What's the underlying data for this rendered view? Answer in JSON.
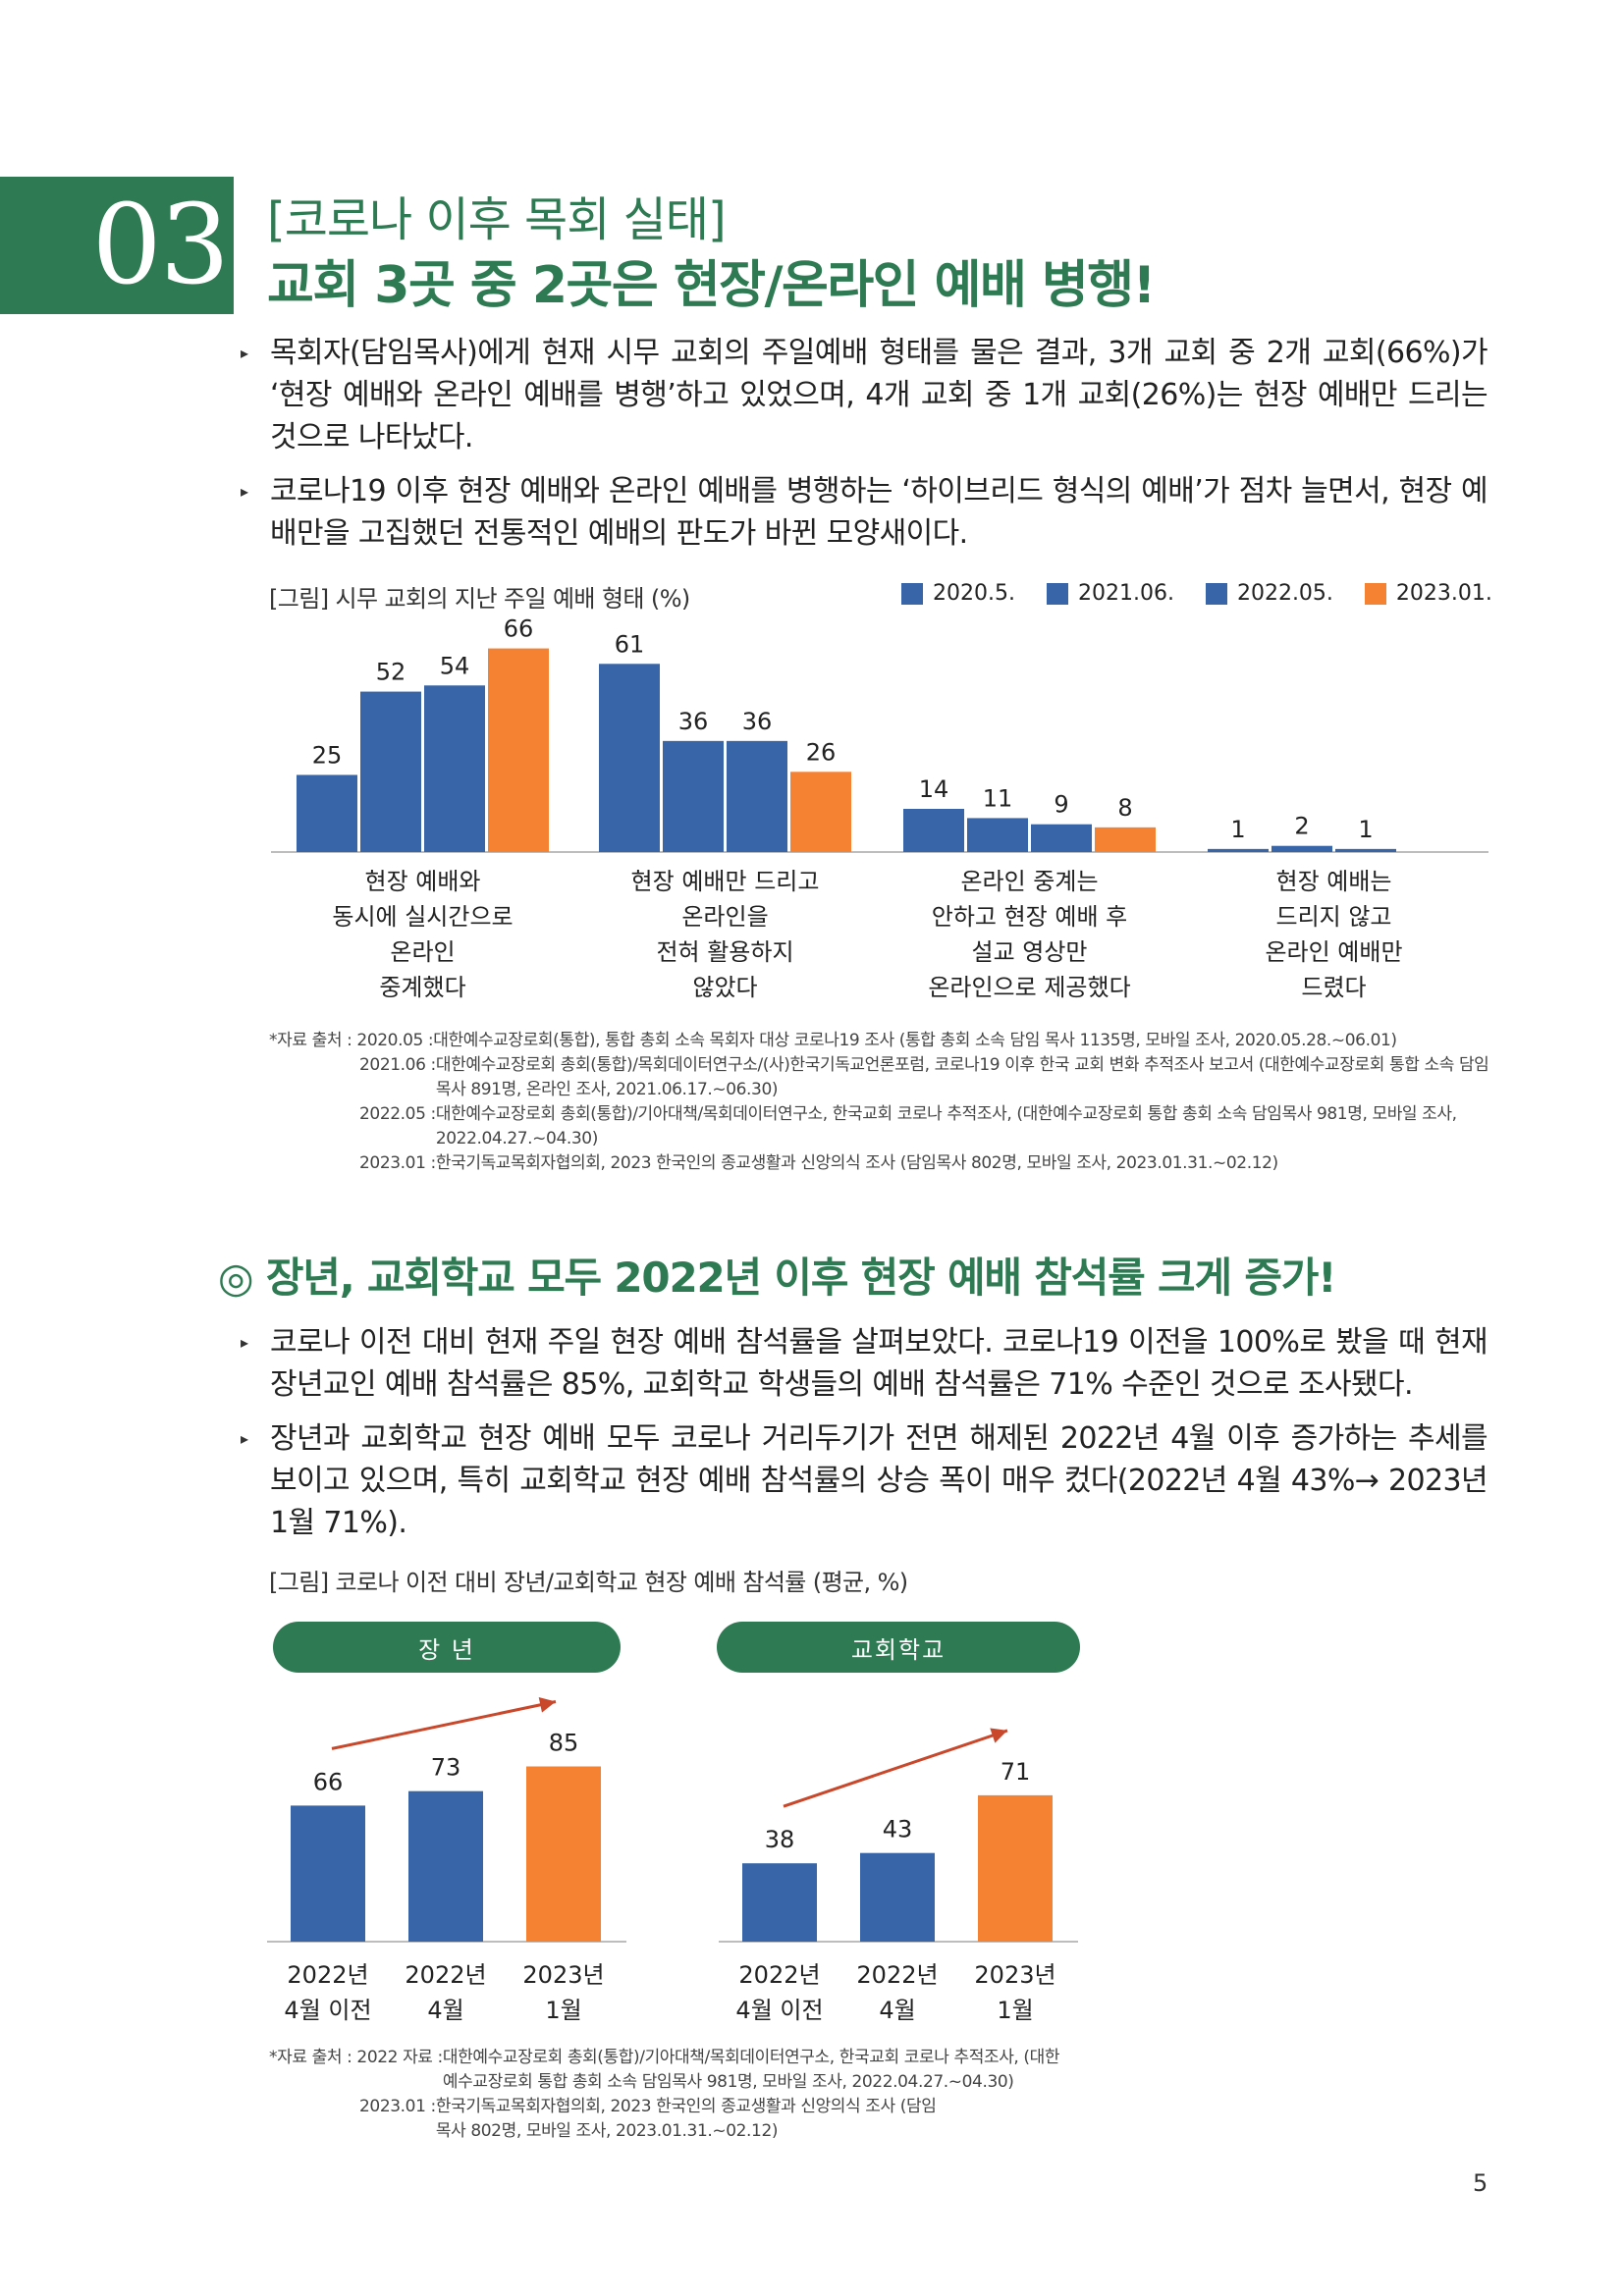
{
  "section": {
    "number": "03",
    "subtitle": "[코로나 이후 목회 실태]",
    "title": "교회 3곳 중 2곳은 현장/온라인 예배 병행!"
  },
  "bullets_top": [
    "목회자(담임목사)에게 현재 시무 교회의 주일예배 형태를 물은 결과, 3개 교회 중 2개 교회(66%)가 ‘현장 예배와 온라인 예배를 병행’하고 있었으며, 4개 교회 중 1개 교회(26%)는 현장 예배만 드리는 것으로 나타났다.",
    "코로나19 이후 현장 예배와 온라인 예배를 병행하는 ‘하이브리드 형식의 예배’가 점차 늘면서, 현장 예배만을 고집했던 전통적인 예배의 판도가 바뀐 모양새이다."
  ],
  "figure1": {
    "caption": "[그림] 시무 교회의 지난 주일 예배 형태 (%)"
  },
  "sources1": [
    {
      "label": "*자료 출처 : 2020.05 : ",
      "text": "대한예수교장로회(통합), 통합 총회 소속 목회자 대상 코로나19 조사 (통합 총회 소속 담임 목사 1135명, 모바일 조사, 2020.05.28.~06.01)"
    },
    {
      "label": "2021.06 : ",
      "text": "대한예수교장로회 총회(통합)/목회데이터연구소/(사)한국기독교언론포럼, 코로나19 이후 한국 교회 변화 추적조사 보고서 (대한예수교장로회 통합 소속 담임목사 891명, 온라인 조사, 2021.06.17.~06.30)"
    },
    {
      "label": "2022.05 : ",
      "text": "대한예수교장로회 총회(통합)/기아대책/목회데이터연구소, 한국교회 코로나 추적조사, (대한예수교장로회 통합 총회 소속 담임목사 981명, 모바일 조사, 2022.04.27.~04.30)"
    },
    {
      "label": "2023.01 : ",
      "text": "한국기독교목회자협의회, 2023 한국인의 종교생활과 신앙의식 조사 (담임목사 802명, 모바일 조사, 2023.01.31.~02.12)"
    }
  ],
  "heading2": "◎ 장년, 교회학교 모두 2022년 이후 현장 예배 참석률 크게 증가!",
  "bullets_bottom": [
    "코로나 이전 대비 현재 주일 현장 예배 참석률을 살펴보았다. 코로나19 이전을 100%로 봤을 때 현재 장년교인 예배 참석률은 85%, 교회학교 학생들의 예배 참석률은 71% 수준인 것으로 조사됐다.",
    "장년과 교회학교 현장 예배 모두 코로나 거리두기가 전면 해제된 2022년 4월 이후 증가하는 추세를 보이고 있으며, 특히 교회학교 현장 예배 참석률의 상승 폭이 매우 컸다(2022년 4월 43%→ 2023년 1월 71%)."
  ],
  "figure2": {
    "caption": "[그림] 코로나 이전 대비 장년/교회학교 현장 예배 참석률 (평균, %)"
  },
  "sources2": [
    {
      "label": "*자료 출처 : 2022 자료 : ",
      "text": "대한예수교장로회 총회(통합)/기아대책/목회데이터연구소, 한국교회 코로나 추적조사, (대한예수교장로회 통합 총회 소속 담임목사 981명, 모바일 조사, 2022.04.27.~04.30)"
    },
    {
      "label": "2023.01 : ",
      "text": "한국기독교목회자협의회, 2023 한국인의 종교생활과 신앙의식 조사 (담임목사 802명, 모바일 조사, 2023.01.31.~02.12)"
    }
  ],
  "page_number": "5",
  "colors": {
    "green": "#2e7a52",
    "blue": "#3765a8",
    "orange": "#f58233"
  },
  "chart_data": [
    {
      "type": "bar",
      "title": "[그림] 시무 교회의 지난 주일 예배 형태 (%)",
      "categories": [
        [
          "현장 예배와",
          "동시에 실시간으로",
          "온라인",
          "중계했다"
        ],
        [
          "현장 예배만 드리고",
          "온라인을",
          "전혀 활용하지",
          "않았다"
        ],
        [
          "온라인 중계는",
          "안하고 현장 예배 후",
          "설교 영상만",
          "온라인으로 제공했다"
        ],
        [
          "현장 예배는",
          "드리지 않고",
          "온라인 예배만",
          "드렸다"
        ]
      ],
      "series": [
        {
          "name": "2020.5.",
          "color": "#3765a8",
          "values": [
            25,
            61,
            14,
            1
          ]
        },
        {
          "name": "2021.06.",
          "color": "#3765a8",
          "values": [
            52,
            36,
            11,
            2
          ]
        },
        {
          "name": "2022.05.",
          "color": "#3765a8",
          "values": [
            54,
            36,
            9,
            1
          ]
        },
        {
          "name": "2023.01.",
          "color": "#f58233",
          "values": [
            66,
            26,
            8,
            null
          ]
        }
      ],
      "ylim": [
        0,
        70
      ],
      "legend_position": "top-right",
      "grid": false
    },
    {
      "type": "bar",
      "title": "장  년",
      "categories": [
        [
          "2022년",
          "4월 이전"
        ],
        [
          "2022년",
          "4월"
        ],
        [
          "2023년",
          "1월"
        ]
      ],
      "values": [
        66,
        73,
        85
      ],
      "colors": [
        "#3765a8",
        "#3765a8",
        "#f58233"
      ],
      "ylim": [
        0,
        100
      ],
      "trend_arrow": true
    },
    {
      "type": "bar",
      "title": "교회학교",
      "categories": [
        [
          "2022년",
          "4월 이전"
        ],
        [
          "2022년",
          "4월"
        ],
        [
          "2023년",
          "1월"
        ]
      ],
      "values": [
        38,
        43,
        71
      ],
      "colors": [
        "#3765a8",
        "#3765a8",
        "#f58233"
      ],
      "ylim": [
        0,
        100
      ],
      "trend_arrow": true
    }
  ]
}
